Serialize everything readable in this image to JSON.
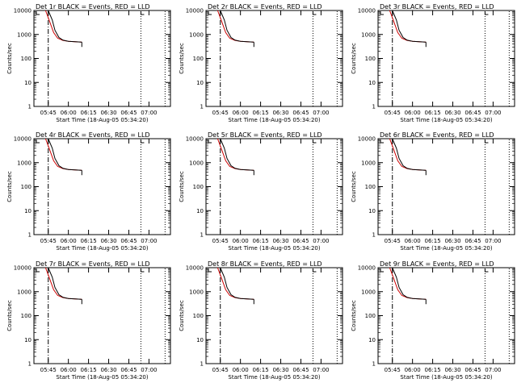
{
  "chart_data": [
    {
      "type": "line",
      "title": "Det 1r BLACK = Events, RED = LLD",
      "xlabel": "Start Time (18-Aug-05 05:34:20)",
      "ylabel": "Counts/sec",
      "x_ticks": [
        "05:45",
        "06:00",
        "06:15",
        "06:30",
        "06:45",
        "07:00"
      ],
      "y_ticks": [
        "1",
        "10",
        "100",
        "1000",
        "10000"
      ],
      "y_scale": "log",
      "ylim": [
        1,
        10000
      ],
      "grid": false,
      "series": [
        {
          "color": "#000000",
          "x": [
            "05:45",
            "05:48",
            "05:50",
            "05:53",
            "05:56",
            "06:00",
            "06:05",
            "06:10"
          ],
          "y": [
            10000,
            4000,
            1500,
            750,
            580,
            520,
            500,
            480
          ]
        },
        {
          "color": "#cc0000",
          "x": [
            "05:43",
            "05:46",
            "05:49",
            "05:52",
            "05:56",
            "06:00",
            "06:05",
            "06:10"
          ],
          "y": [
            10000,
            3500,
            1200,
            700,
            560,
            520,
            500,
            480
          ]
        }
      ]
    },
    {
      "type": "line",
      "title": "Det 2r BLACK = Events, RED = LLD",
      "xlabel": "Start Time (18-Aug-05 05:34:20)",
      "ylabel": "Counts/sec",
      "x_ticks": [
        "05:45",
        "06:00",
        "06:15",
        "06:30",
        "06:45",
        "07:00"
      ],
      "y_ticks": [
        "1",
        "10",
        "100",
        "1000",
        "10000"
      ],
      "y_scale": "log",
      "ylim": [
        1,
        10000
      ],
      "grid": false,
      "series": [
        {
          "color": "#000000",
          "x": [
            "05:45",
            "05:48",
            "05:50",
            "05:53",
            "05:56",
            "06:00",
            "06:05",
            "06:10"
          ],
          "y": [
            10000,
            4000,
            1500,
            750,
            580,
            520,
            500,
            480
          ]
        },
        {
          "color": "#cc0000",
          "x": [
            "05:43",
            "05:46",
            "05:49",
            "05:52",
            "05:56",
            "06:00",
            "06:05",
            "06:10"
          ],
          "y": [
            10000,
            3500,
            1200,
            700,
            560,
            520,
            500,
            480
          ]
        }
      ]
    },
    {
      "type": "line",
      "title": "Det 3r BLACK = Events, RED = LLD",
      "xlabel": "Start Time (18-Aug-05 05:34:20)",
      "ylabel": "Counts/sec",
      "x_ticks": [
        "05:45",
        "06:00",
        "06:15",
        "06:30",
        "06:45",
        "07:00"
      ],
      "y_ticks": [
        "1",
        "10",
        "100",
        "1000",
        "10000"
      ],
      "y_scale": "log",
      "ylim": [
        1,
        10000
      ],
      "grid": false,
      "series": [
        {
          "color": "#000000",
          "x": [
            "05:45",
            "05:48",
            "05:50",
            "05:53",
            "05:56",
            "06:00",
            "06:05",
            "06:10"
          ],
          "y": [
            10000,
            4000,
            1500,
            750,
            580,
            520,
            500,
            480
          ]
        },
        {
          "color": "#cc0000",
          "x": [
            "05:43",
            "05:46",
            "05:49",
            "05:52",
            "05:56",
            "06:00",
            "06:05",
            "06:10"
          ],
          "y": [
            10000,
            3500,
            1200,
            700,
            560,
            520,
            500,
            480
          ]
        }
      ]
    },
    {
      "type": "line",
      "title": "Det 4r BLACK = Events, RED = LLD",
      "xlabel": "Start Time (18-Aug-05 05:34:20)",
      "ylabel": "Counts/sec",
      "x_ticks": [
        "05:45",
        "06:00",
        "06:15",
        "06:30",
        "06:45",
        "07:00"
      ],
      "y_ticks": [
        "1",
        "10",
        "100",
        "1000",
        "10000"
      ],
      "y_scale": "log",
      "ylim": [
        1,
        10000
      ],
      "grid": false,
      "series": [
        {
          "color": "#000000",
          "x": [
            "05:45",
            "05:48",
            "05:50",
            "05:53",
            "05:56",
            "06:00",
            "06:05",
            "06:10"
          ],
          "y": [
            10000,
            4000,
            1500,
            750,
            580,
            520,
            500,
            480
          ]
        },
        {
          "color": "#cc0000",
          "x": [
            "05:43",
            "05:46",
            "05:49",
            "05:52",
            "05:56",
            "06:00",
            "06:05",
            "06:10"
          ],
          "y": [
            10000,
            3500,
            1200,
            700,
            560,
            520,
            500,
            480
          ]
        }
      ]
    },
    {
      "type": "line",
      "title": "Det 5r BLACK = Events, RED = LLD",
      "xlabel": "Start Time (18-Aug-05 05:34:20)",
      "ylabel": "Counts/sec",
      "x_ticks": [
        "05:45",
        "06:00",
        "06:15",
        "06:30",
        "06:45",
        "07:00"
      ],
      "y_ticks": [
        "1",
        "10",
        "100",
        "1000",
        "10000"
      ],
      "y_scale": "log",
      "ylim": [
        1,
        10000
      ],
      "grid": false,
      "series": [
        {
          "color": "#000000",
          "x": [
            "05:45",
            "05:48",
            "05:50",
            "05:53",
            "05:56",
            "06:00",
            "06:05",
            "06:10"
          ],
          "y": [
            10000,
            4000,
            1500,
            750,
            580,
            520,
            500,
            480
          ]
        },
        {
          "color": "#cc0000",
          "x": [
            "05:43",
            "05:46",
            "05:49",
            "05:52",
            "05:56",
            "06:00",
            "06:05",
            "06:10"
          ],
          "y": [
            10000,
            3500,
            1200,
            700,
            560,
            520,
            500,
            480
          ]
        }
      ]
    },
    {
      "type": "line",
      "title": "Det 6r BLACK = Events, RED = LLD",
      "xlabel": "Start Time (18-Aug-05 05:34:20)",
      "ylabel": "Counts/sec",
      "x_ticks": [
        "05:45",
        "06:00",
        "06:15",
        "06:30",
        "06:45",
        "07:00"
      ],
      "y_ticks": [
        "1",
        "10",
        "100",
        "1000",
        "10000"
      ],
      "y_scale": "log",
      "ylim": [
        1,
        10000
      ],
      "grid": false,
      "series": [
        {
          "color": "#000000",
          "x": [
            "05:45",
            "05:48",
            "05:50",
            "05:53",
            "05:56",
            "06:00",
            "06:05",
            "06:10"
          ],
          "y": [
            10000,
            4000,
            1500,
            750,
            580,
            520,
            500,
            480
          ]
        },
        {
          "color": "#cc0000",
          "x": [
            "05:43",
            "05:46",
            "05:49",
            "05:52",
            "05:56",
            "06:00",
            "06:05",
            "06:10"
          ],
          "y": [
            10000,
            3500,
            1200,
            700,
            560,
            520,
            500,
            480
          ]
        }
      ]
    },
    {
      "type": "line",
      "title": "Det 7r BLACK = Events, RED = LLD",
      "xlabel": "Start Time (18-Aug-05 05:34:20)",
      "ylabel": "Counts/sec",
      "x_ticks": [
        "05:45",
        "06:00",
        "06:15",
        "06:30",
        "06:45",
        "07:00"
      ],
      "y_ticks": [
        "1",
        "10",
        "100",
        "1000",
        "10000"
      ],
      "y_scale": "log",
      "ylim": [
        1,
        10000
      ],
      "grid": false,
      "series": [
        {
          "color": "#000000",
          "x": [
            "05:45",
            "05:48",
            "05:50",
            "05:53",
            "05:56",
            "06:00",
            "06:05",
            "06:10"
          ],
          "y": [
            10000,
            4000,
            1500,
            750,
            580,
            520,
            500,
            480
          ]
        },
        {
          "color": "#cc0000",
          "x": [
            "05:43",
            "05:46",
            "05:49",
            "05:52",
            "05:56",
            "06:00",
            "06:05",
            "06:10"
          ],
          "y": [
            10000,
            3500,
            1200,
            700,
            560,
            520,
            500,
            480
          ]
        }
      ]
    },
    {
      "type": "line",
      "title": "Det 8r BLACK = Events, RED = LLD",
      "xlabel": "Start Time (18-Aug-05 05:34:20)",
      "ylabel": "Counts/sec",
      "x_ticks": [
        "05:45",
        "06:00",
        "06:15",
        "06:30",
        "06:45",
        "07:00"
      ],
      "y_ticks": [
        "1",
        "10",
        "100",
        "1000",
        "10000"
      ],
      "y_scale": "log",
      "ylim": [
        1,
        10000
      ],
      "grid": false,
      "series": [
        {
          "color": "#000000",
          "x": [
            "05:45",
            "05:48",
            "05:50",
            "05:53",
            "05:56",
            "06:00",
            "06:05",
            "06:10"
          ],
          "y": [
            10000,
            4000,
            1500,
            750,
            580,
            520,
            500,
            480
          ]
        },
        {
          "color": "#cc0000",
          "x": [
            "05:43",
            "05:46",
            "05:49",
            "05:52",
            "05:56",
            "06:00",
            "06:05",
            "06:10"
          ],
          "y": [
            10000,
            3500,
            1200,
            700,
            560,
            520,
            500,
            480
          ]
        }
      ]
    },
    {
      "type": "line",
      "title": "Det 9r BLACK = Events, RED = LLD",
      "xlabel": "Start Time (18-Aug-05 05:34:20)",
      "ylabel": "Counts/sec",
      "x_ticks": [
        "05:45",
        "06:00",
        "06:15",
        "06:30",
        "06:45",
        "07:00"
      ],
      "y_ticks": [
        "1",
        "10",
        "100",
        "1000",
        "10000"
      ],
      "y_scale": "log",
      "ylim": [
        1,
        10000
      ],
      "grid": false,
      "series": [
        {
          "color": "#000000",
          "x": [
            "05:45",
            "05:48",
            "05:50",
            "05:53",
            "05:56",
            "06:00",
            "06:05",
            "06:10"
          ],
          "y": [
            10000,
            4000,
            1500,
            750,
            580,
            520,
            500,
            480
          ]
        },
        {
          "color": "#cc0000",
          "x": [
            "05:43",
            "05:46",
            "05:49",
            "05:52",
            "05:56",
            "06:00",
            "06:05",
            "06:10"
          ],
          "y": [
            10000,
            3500,
            1200,
            700,
            560,
            520,
            500,
            480
          ]
        }
      ]
    }
  ]
}
